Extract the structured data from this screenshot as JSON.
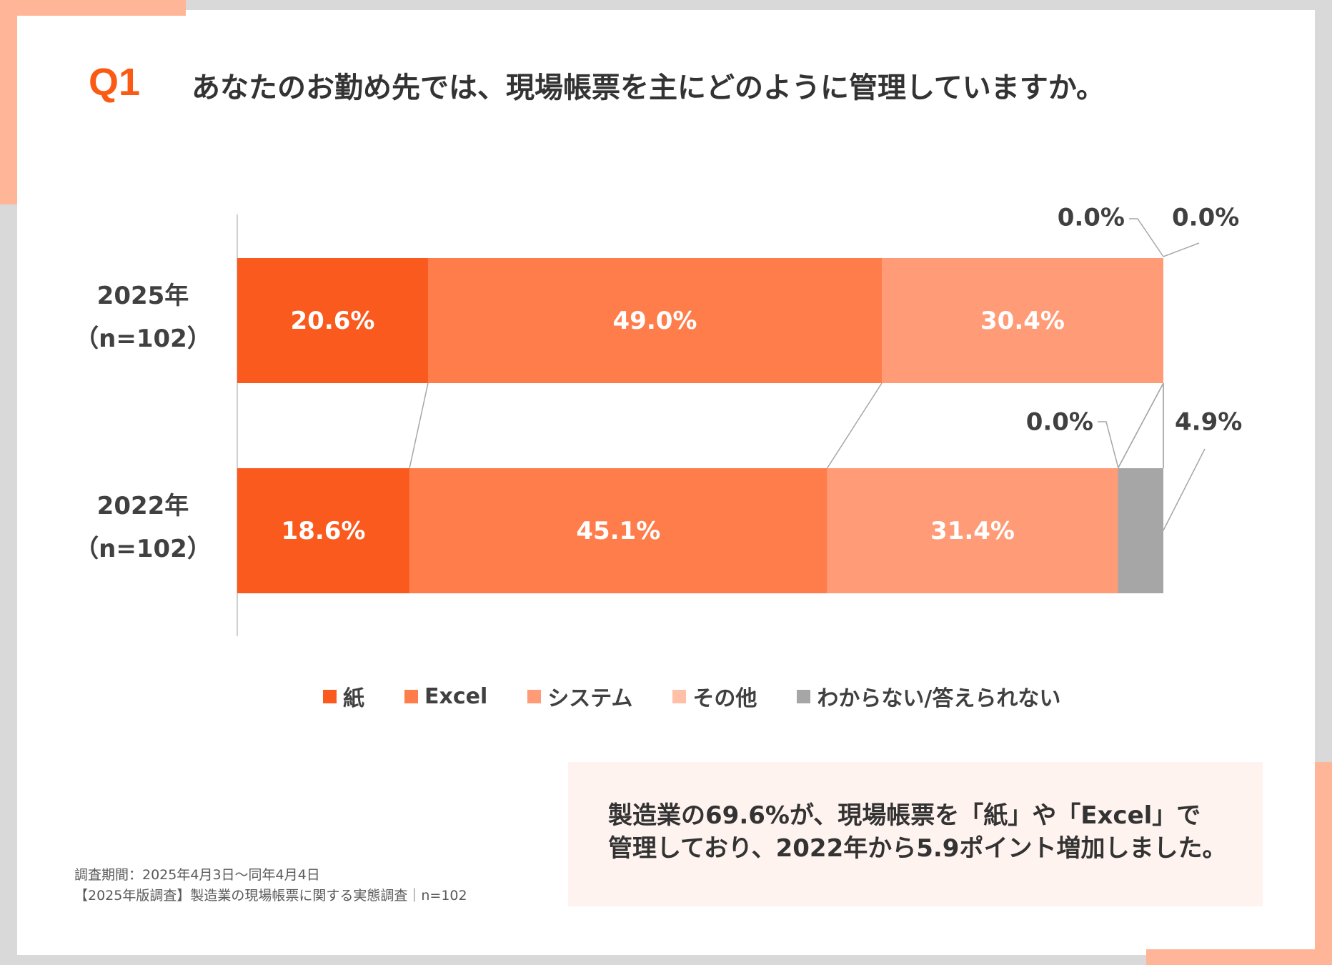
{
  "question": {
    "number": "Q1",
    "text": "あなたのお勤め先では、現場帳票を主にどのように管理していますか。"
  },
  "colors": {
    "paper": "#fa5a1e",
    "excel": "#ff7d4b",
    "system": "#ff9c77",
    "other": "#ffc0a8",
    "unknown": "#a6a6a6",
    "accent": "#fa5a14"
  },
  "chart_data": {
    "type": "bar",
    "orientation": "horizontal",
    "stacked": true,
    "normalized": true,
    "categories": [
      {
        "label": "2025年",
        "sublabel": "（n=102）"
      },
      {
        "label": "2022年",
        "sublabel": "（n=102）"
      }
    ],
    "series": [
      {
        "name": "紙",
        "color": "#fa5a1e",
        "values": [
          20.6,
          18.6
        ],
        "labels": [
          "20.6%",
          "18.6%"
        ]
      },
      {
        "name": "Excel",
        "color": "#ff7d4b",
        "values": [
          49.0,
          45.1
        ],
        "labels": [
          "49.0%",
          "45.1%"
        ]
      },
      {
        "name": "システム",
        "color": "#ff9c77",
        "values": [
          30.4,
          31.4
        ],
        "labels": [
          "30.4%",
          "31.4%"
        ]
      },
      {
        "name": "その他",
        "color": "#ffc0a8",
        "values": [
          0.0,
          0.0
        ],
        "labels": [
          "0.0%",
          "0.0%"
        ]
      },
      {
        "name": "わからない/答えられない",
        "color": "#a6a6a6",
        "values": [
          0.0,
          4.9
        ],
        "labels": [
          "0.0%",
          "4.9%"
        ]
      }
    ],
    "xlim": [
      0,
      100
    ],
    "connector_lines": true,
    "legend_position": "bottom"
  },
  "summary": {
    "line1": "製造業の69.6%が、現場帳票を「紙」や「Excel」で",
    "line2": "管理しており、2022年から5.9ポイント増加しました。"
  },
  "note": {
    "line1": "調査期間：2025年4月3日～同年4月4日",
    "line2": "【2025年版調査】製造業の現場帳票に関する実態調査｜n=102"
  }
}
